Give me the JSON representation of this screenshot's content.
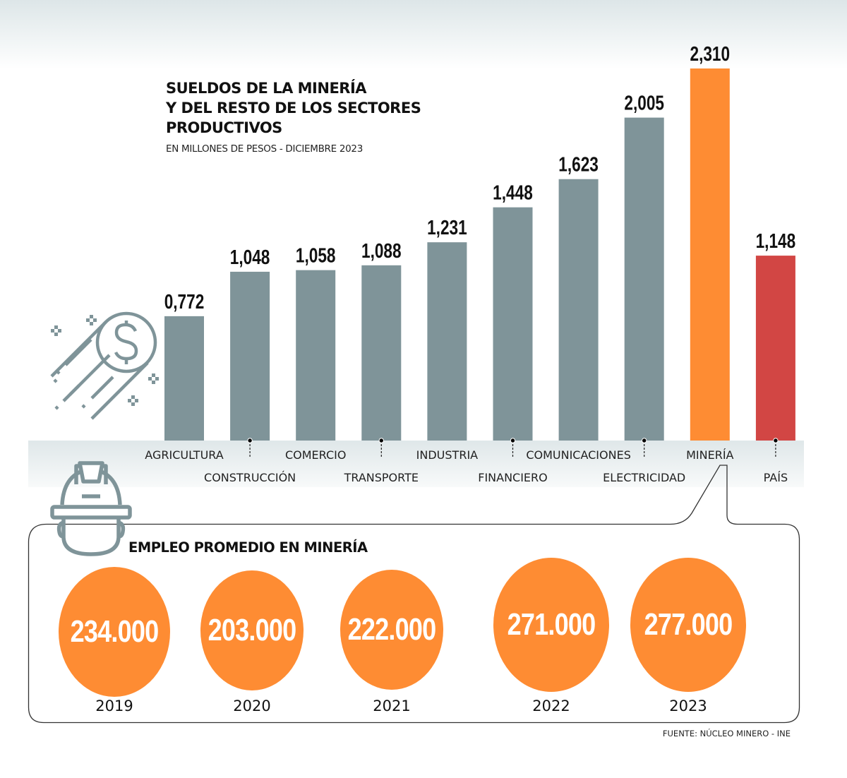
{
  "title_lines": [
    "SUELDOS DE LA MINERÍA",
    "Y DEL RESTO DE LOS SECTORES",
    "PRODUCTIVOS"
  ],
  "subtitle": "EN MILLONES DE PESOS - DICIEMBRE 2023",
  "colors": {
    "bar_default": "#7f9499",
    "bar_highlight": "#fe8c33",
    "bar_country": "#d24644",
    "circle": "#fe8c33",
    "icon": "#7f9499"
  },
  "chart_data": {
    "type": "bar",
    "title": "SUELDOS DE LA MINERÍA Y DEL RESTO DE LOS SECTORES PRODUCTIVOS",
    "subtitle": "EN MILLONES DE PESOS - DICIEMBRE 2023",
    "xlabel": "",
    "ylabel": "",
    "ylim": [
      0,
      2.31
    ],
    "grid": false,
    "categories": [
      "AGRICULTURA",
      "CONSTRUCCIÓN",
      "COMERCIO",
      "TRANSPORTE",
      "INDUSTRIA",
      "FINANCIERO",
      "COMUNICACIONES",
      "ELECTRICIDAD",
      "MINERÍA",
      "PAÍS"
    ],
    "values": [
      0.772,
      1.048,
      1.058,
      1.088,
      1.231,
      1.448,
      1.623,
      2.005,
      2.31,
      1.148
    ],
    "value_labels": [
      "0,772",
      "1,048",
      "1,058",
      "1,088",
      "1,231",
      "1,448",
      "1,623",
      "2,005",
      "2,310",
      "1,148"
    ],
    "bar_color_keys": [
      "bar_default",
      "bar_default",
      "bar_default",
      "bar_default",
      "bar_default",
      "bar_default",
      "bar_default",
      "bar_default",
      "bar_highlight",
      "bar_country"
    ]
  },
  "employment": {
    "title": "EMPLEO PROMEDIO EN MINERÍA",
    "items": [
      {
        "year": "2019",
        "value": 234000,
        "label": "234.000"
      },
      {
        "year": "2020",
        "value": 203000,
        "label": "203.000"
      },
      {
        "year": "2021",
        "value": 222000,
        "label": "222.000"
      },
      {
        "year": "2022",
        "value": 271000,
        "label": "271.000"
      },
      {
        "year": "2023",
        "value": 277000,
        "label": "277.000"
      }
    ]
  },
  "source": "FUENTE: NÚCLEO MINERO - INE",
  "icons": {
    "coin": "flying-dollar-coin-icon",
    "helmet": "miner-helmet-icon"
  }
}
